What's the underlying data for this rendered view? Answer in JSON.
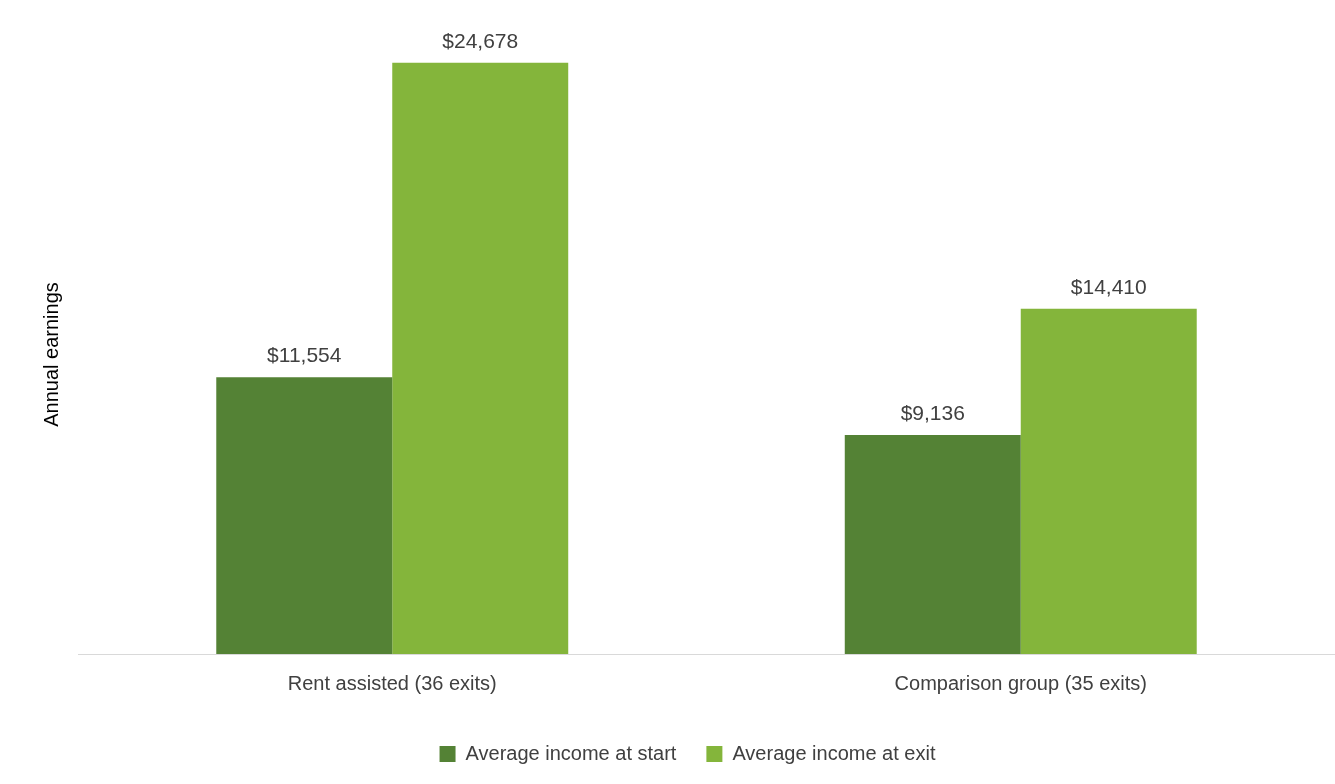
{
  "chart_data": {
    "type": "bar",
    "ylabel": "Annual earnings",
    "categories": [
      "Rent assisted (36 exits)",
      "Comparison group (35 exits)"
    ],
    "series": [
      {
        "name": "Average income at start",
        "color": "#548235",
        "values": [
          11554,
          9136
        ],
        "value_labels": [
          "$11,554",
          "$9,136"
        ]
      },
      {
        "name": "Average income at exit",
        "color": "#84b53b",
        "values": [
          24678,
          14410
        ],
        "value_labels": [
          "$24,678",
          "$14,410"
        ]
      }
    ],
    "grid": false,
    "legend": "bottom",
    "tick_labels": "x"
  }
}
